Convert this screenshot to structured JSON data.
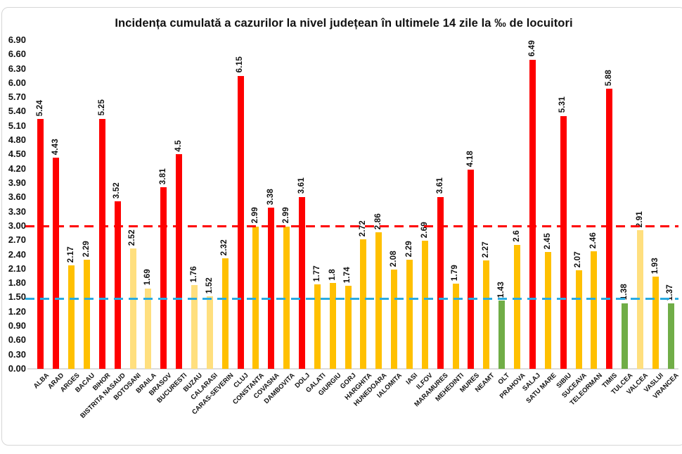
{
  "page": {
    "background": "#ffffff",
    "frame_border_color": "#d6d6d6"
  },
  "chart_data": {
    "type": "bar",
    "title": "Incidența cumulată a cazurilor la nivel județean în ultimele 14 zile la ‰ de locuitori",
    "xlabel": "",
    "ylabel": "",
    "grid": "off",
    "legend": "none",
    "categories": [
      "ALBA",
      "ARAD",
      "ARGES",
      "BACAU",
      "BIHOR",
      "BISTRITA NASAUD",
      "BOTOSANI",
      "BRAILA",
      "BRASOV",
      "BUCURESTI",
      "BUZAU",
      "CALARASI",
      "CARAS-SEVERIN",
      "CLUJ",
      "CONSTANTA",
      "COVASNA",
      "DAMBOVITA",
      "DOLJ",
      "GALATI",
      "GIURGIU",
      "GORJ",
      "HARGHITA",
      "HUNEDOARA",
      "IALOMITA",
      "IASI",
      "ILFOV",
      "MARAMURES",
      "MEHEDINTI",
      "MURES",
      "NEAMT",
      "OLT",
      "PRAHOVA",
      "SALAJ",
      "SATU MARE",
      "SIBIU",
      "SUCEAVA",
      "TELEORMAN",
      "TIMIS",
      "TULCEA",
      "VALCEA",
      "VASLUI",
      "VRANCEA"
    ],
    "values": [
      5.24,
      4.43,
      2.17,
      2.29,
      5.25,
      3.52,
      2.52,
      1.69,
      3.81,
      4.5,
      1.76,
      1.52,
      2.32,
      6.15,
      2.99,
      3.38,
      2.99,
      3.61,
      1.77,
      1.8,
      1.74,
      2.72,
      2.86,
      2.08,
      2.29,
      2.69,
      3.61,
      1.79,
      4.18,
      2.27,
      1.43,
      2.6,
      6.49,
      2.45,
      5.31,
      2.07,
      2.46,
      5.88,
      1.38,
      2.91,
      1.93,
      1.37
    ],
    "value_labels": [
      "5.24",
      "4.43",
      "2.17",
      "2.29",
      "5.25",
      "3.52",
      "2.52",
      "1.69",
      "3.81",
      "4.5",
      "1.76",
      "1.52",
      "2.32",
      "6.15",
      "2.99",
      "3.38",
      "2.99",
      "3.61",
      "1.77",
      "1.8",
      "1.74",
      "2.72",
      "2.86",
      "2.08",
      "2.29",
      "2.69",
      "3.61",
      "1.79",
      "4.18",
      "2.27",
      "1.43",
      "2.6",
      "6.49",
      "2.45",
      "5.31",
      "2.07",
      "2.46",
      "5.88",
      "1.38",
      "2.91",
      "1.93",
      "1.37"
    ],
    "bar_color_keys": [
      "red",
      "red",
      "amber",
      "amber",
      "red",
      "red",
      "pale_yellow",
      "pale_yellow",
      "red",
      "red",
      "pale_yellow",
      "pale_yellow",
      "amber",
      "red",
      "amber",
      "red",
      "amber",
      "red",
      "amber",
      "amber",
      "amber",
      "amber",
      "amber",
      "amber",
      "amber",
      "amber",
      "red",
      "amber",
      "red",
      "amber",
      "green",
      "amber",
      "red",
      "amber",
      "red",
      "amber",
      "amber",
      "red",
      "green",
      "pale_yellow",
      "amber",
      "green"
    ],
    "palette": {
      "red": "#fe0000",
      "amber": "#ffc000",
      "pale_yellow": "#ffdf7e",
      "green": "#70ad47"
    },
    "y_axis": {
      "min": 0.0,
      "max": 6.9,
      "step": 0.3,
      "tick_labels": [
        "0.00",
        "0.30",
        "0.60",
        "0.90",
        "1.20",
        "1.50",
        "1.80",
        "2.10",
        "2.40",
        "2.70",
        "3.00",
        "3.30",
        "3.60",
        "3.90",
        "4.20",
        "4.50",
        "4.80",
        "5.10",
        "5.40",
        "5.70",
        "6.00",
        "6.30",
        "6.60",
        "6.90"
      ]
    },
    "x_axis": {
      "label_rotation_deg": -45
    },
    "reference_lines": [
      {
        "name": "upper-threshold",
        "value": 3.0,
        "color": "#fe0000",
        "style": "dashed"
      },
      {
        "name": "lower-threshold",
        "value": 1.47,
        "color": "#29abe2",
        "style": "dashed"
      }
    ]
  }
}
